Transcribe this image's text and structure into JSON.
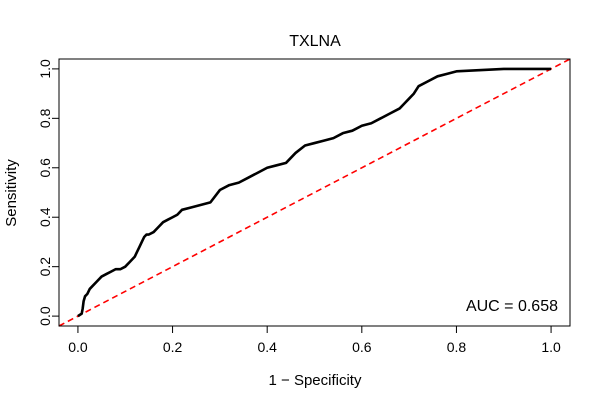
{
  "chart_data": {
    "type": "line",
    "title": "TXLNA",
    "xlabel": "1 − Specificity",
    "ylabel": "Sensitivity",
    "xlim": [
      -0.04,
      1.04
    ],
    "ylim": [
      -0.04,
      1.04
    ],
    "xticks": [
      0.0,
      0.2,
      0.4,
      0.6,
      0.8,
      1.0
    ],
    "xtick_labels": [
      "0.0",
      "0.2",
      "0.4",
      "0.6",
      "0.8",
      "1.0"
    ],
    "yticks": [
      0.0,
      0.2,
      0.4,
      0.6,
      0.8,
      1.0
    ],
    "ytick_labels": [
      "0.0",
      "0.2",
      "0.4",
      "0.6",
      "0.8",
      "1.0"
    ],
    "grid": false,
    "annotation": "AUC = 0.658",
    "colors": {
      "roc": "#000000",
      "reference": "#ff0000"
    },
    "reference_line": {
      "x": [
        -0.04,
        1.04
      ],
      "y": [
        -0.04,
        1.04
      ],
      "style": "dashed"
    },
    "series": [
      {
        "x": [
          0.0,
          0.008,
          0.01,
          0.012,
          0.015,
          0.02,
          0.025,
          0.03,
          0.04,
          0.05,
          0.06,
          0.07,
          0.08,
          0.09,
          0.1,
          0.11,
          0.12,
          0.125,
          0.13,
          0.135,
          0.14,
          0.145,
          0.15,
          0.16,
          0.17,
          0.18,
          0.19,
          0.2,
          0.21,
          0.22,
          0.24,
          0.26,
          0.28,
          0.3,
          0.32,
          0.34,
          0.36,
          0.38,
          0.4,
          0.42,
          0.44,
          0.46,
          0.48,
          0.5,
          0.52,
          0.54,
          0.56,
          0.58,
          0.6,
          0.62,
          0.64,
          0.66,
          0.68,
          0.69,
          0.7,
          0.71,
          0.72,
          0.74,
          0.76,
          0.78,
          0.8,
          0.9,
          1.0
        ],
        "y": [
          0.0,
          0.01,
          0.03,
          0.06,
          0.08,
          0.09,
          0.11,
          0.12,
          0.14,
          0.16,
          0.17,
          0.18,
          0.19,
          0.19,
          0.2,
          0.22,
          0.24,
          0.26,
          0.28,
          0.3,
          0.32,
          0.33,
          0.33,
          0.34,
          0.36,
          0.38,
          0.39,
          0.4,
          0.41,
          0.43,
          0.44,
          0.45,
          0.46,
          0.51,
          0.53,
          0.54,
          0.56,
          0.58,
          0.6,
          0.61,
          0.62,
          0.66,
          0.69,
          0.7,
          0.71,
          0.72,
          0.74,
          0.75,
          0.77,
          0.78,
          0.8,
          0.82,
          0.84,
          0.86,
          0.88,
          0.9,
          0.93,
          0.95,
          0.97,
          0.98,
          0.99,
          1.0,
          1.0
        ]
      }
    ]
  }
}
